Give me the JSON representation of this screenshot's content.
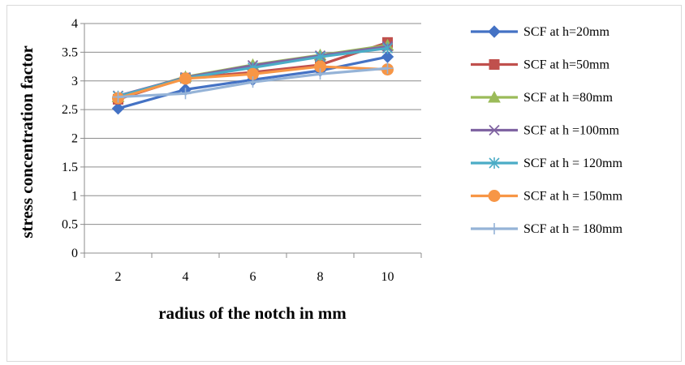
{
  "chart_data": {
    "type": "line",
    "categories": [
      "2",
      "4",
      "6",
      "8",
      "10"
    ],
    "x": [
      2,
      4,
      6,
      8,
      10
    ],
    "xlabel": "radius of the notch in mm",
    "ylabel": "stress concentration factor",
    "ylim": [
      0,
      4
    ],
    "yticks": [
      "0",
      "0.5",
      "1",
      "1.5",
      "2",
      "2.5",
      "3",
      "3.5",
      "4"
    ],
    "grid": "horizontal",
    "legend_position": "right",
    "series": [
      {
        "name": "SCF at h=20mm",
        "values": [
          2.52,
          2.85,
          3.02,
          3.18,
          3.42
        ],
        "color": "#4472C4",
        "marker": "diamond"
      },
      {
        "name": "SCF at h=50mm",
        "values": [
          2.68,
          3.05,
          3.15,
          3.28,
          3.67
        ],
        "color": "#C0504D",
        "marker": "square"
      },
      {
        "name": "SCF at h =80mm",
        "values": [
          2.72,
          3.07,
          3.28,
          3.45,
          3.62
        ],
        "color": "#9BBB59",
        "marker": "triangle"
      },
      {
        "name": "SCF  at h =100mm",
        "values": [
          2.74,
          3.06,
          3.27,
          3.44,
          3.6
        ],
        "color": "#8064A2",
        "marker": "x"
      },
      {
        "name": "SCF at h = 120mm",
        "values": [
          2.73,
          3.05,
          3.23,
          3.42,
          3.57
        ],
        "color": "#4BACC6",
        "marker": "star"
      },
      {
        "name": "SCF  at h = 150mm",
        "values": [
          2.7,
          3.04,
          3.12,
          3.25,
          3.2
        ],
        "color": "#F79646",
        "marker": "circle"
      },
      {
        "name": "SCF  at h = 180mm",
        "values": [
          2.72,
          2.78,
          2.98,
          3.12,
          3.22
        ],
        "color": "#95B3D7",
        "marker": "plus"
      }
    ]
  }
}
